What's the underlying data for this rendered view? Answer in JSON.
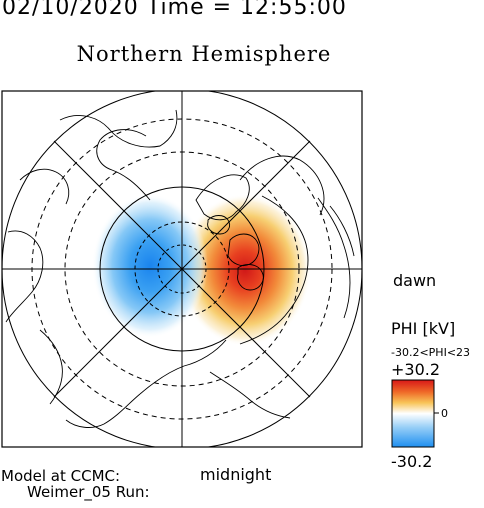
{
  "header": {
    "datetime_line": "02/10/2020 Time = 12:55:00"
  },
  "title": "Northern Hemisphere",
  "map": {
    "labels": {
      "right": "dawn",
      "bottom": "midnight"
    },
    "pattern": {
      "dawn_cell": {
        "sign": "positive",
        "color": "#d83018"
      },
      "dusk_cell": {
        "sign": "negative",
        "color": "#2090f0"
      }
    }
  },
  "colorbar": {
    "title": "PHI [kV]",
    "range_text": "-30.2<PHI<23",
    "max_label": "+30.2",
    "mid_label": "0",
    "min_label": "-30.2",
    "colors": [
      "#1f8ff0",
      "#7cc4f6",
      "#ffffff",
      "#f6d060",
      "#f08030",
      "#d81818"
    ]
  },
  "credits": {
    "line1": "Model at CCMC:",
    "line2": "Weimer_05 Run:"
  }
}
